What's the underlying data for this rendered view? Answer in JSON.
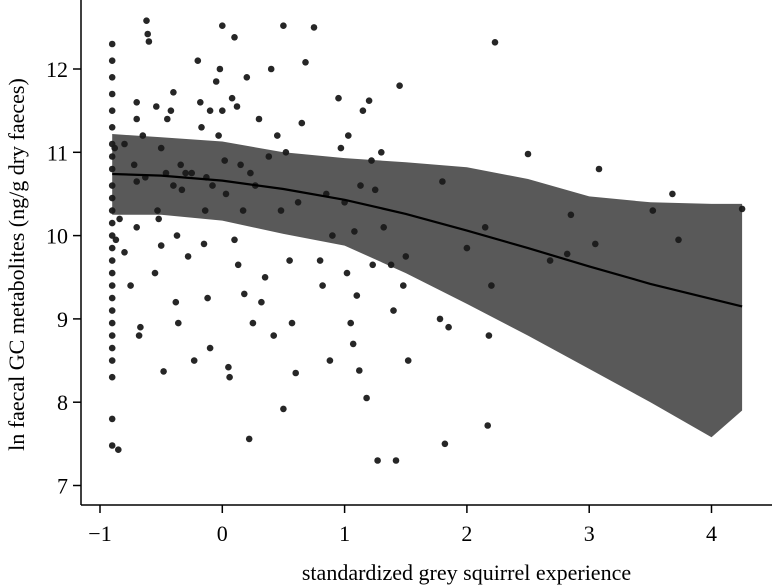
{
  "chart_data": {
    "type": "scatter",
    "title": "",
    "xlabel": "standardized grey squirrel experience",
    "ylabel": "ln faecal GC metabolites (ng/g dry faeces)",
    "xlim": [
      -1.2,
      4.5
    ],
    "ylim": [
      6.85,
      12.7
    ],
    "x_ticks": [
      -1,
      0,
      1,
      2,
      3,
      4
    ],
    "x_tick_labels": [
      "−1",
      "0",
      "1",
      "2",
      "3",
      "4"
    ],
    "y_ticks": [
      7,
      8,
      9,
      10,
      11,
      12
    ],
    "y_tick_labels": [
      "7",
      "8",
      "9",
      "10",
      "11",
      "12"
    ],
    "grid": false,
    "colors": {
      "points": "#1a1a1a",
      "ribbon": "#595959",
      "fit_line": "#000000",
      "axis": "#000000"
    },
    "fit_line": {
      "x": [
        -0.9,
        -0.5,
        0,
        0.5,
        1,
        1.5,
        2,
        2.5,
        3,
        3.5,
        4,
        4.25
      ],
      "y": [
        10.74,
        10.72,
        10.66,
        10.56,
        10.43,
        10.26,
        10.06,
        9.85,
        9.63,
        9.42,
        9.24,
        9.15
      ]
    },
    "confidence_band": {
      "x": [
        -0.9,
        -0.5,
        0,
        0.5,
        1,
        1.5,
        2,
        2.5,
        3,
        3.5,
        4,
        4.25
      ],
      "lower": [
        10.25,
        10.25,
        10.18,
        10.02,
        9.88,
        9.55,
        9.18,
        8.8,
        8.4,
        8.0,
        7.58,
        7.9
      ],
      "upper": [
        11.22,
        11.18,
        11.13,
        11.0,
        10.93,
        10.88,
        10.82,
        10.68,
        10.47,
        10.4,
        10.38,
        10.38
      ]
    },
    "points": [
      {
        "x": -0.9,
        "y": 12.3
      },
      {
        "x": -0.9,
        "y": 12.1
      },
      {
        "x": -0.9,
        "y": 11.9
      },
      {
        "x": -0.9,
        "y": 11.7
      },
      {
        "x": -0.9,
        "y": 11.5
      },
      {
        "x": -0.9,
        "y": 11.3
      },
      {
        "x": -0.9,
        "y": 11.1
      },
      {
        "x": -0.9,
        "y": 10.95
      },
      {
        "x": -0.9,
        "y": 10.8
      },
      {
        "x": -0.9,
        "y": 10.6
      },
      {
        "x": -0.9,
        "y": 10.45
      },
      {
        "x": -0.9,
        "y": 10.3
      },
      {
        "x": -0.9,
        "y": 10.15
      },
      {
        "x": -0.9,
        "y": 10.0
      },
      {
        "x": -0.9,
        "y": 9.85
      },
      {
        "x": -0.9,
        "y": 9.7
      },
      {
        "x": -0.9,
        "y": 9.55
      },
      {
        "x": -0.9,
        "y": 9.4
      },
      {
        "x": -0.9,
        "y": 9.25
      },
      {
        "x": -0.9,
        "y": 9.1
      },
      {
        "x": -0.9,
        "y": 8.95
      },
      {
        "x": -0.9,
        "y": 8.8
      },
      {
        "x": -0.9,
        "y": 8.65
      },
      {
        "x": -0.9,
        "y": 8.5
      },
      {
        "x": -0.9,
        "y": 8.3
      },
      {
        "x": -0.9,
        "y": 7.8
      },
      {
        "x": -0.9,
        "y": 7.48
      },
      {
        "x": -0.88,
        "y": 11.05
      },
      {
        "x": -0.87,
        "y": 9.95
      },
      {
        "x": -0.85,
        "y": 7.43
      },
      {
        "x": -0.84,
        "y": 10.2
      },
      {
        "x": -0.8,
        "y": 11.1
      },
      {
        "x": -0.8,
        "y": 9.8
      },
      {
        "x": -0.75,
        "y": 9.4
      },
      {
        "x": -0.72,
        "y": 10.85
      },
      {
        "x": -0.7,
        "y": 11.6
      },
      {
        "x": -0.7,
        "y": 11.4
      },
      {
        "x": -0.7,
        "y": 10.65
      },
      {
        "x": -0.7,
        "y": 10.1
      },
      {
        "x": -0.68,
        "y": 8.8
      },
      {
        "x": -0.67,
        "y": 8.9
      },
      {
        "x": -0.65,
        "y": 11.2
      },
      {
        "x": -0.63,
        "y": 10.7
      },
      {
        "x": -0.62,
        "y": 12.58
      },
      {
        "x": -0.61,
        "y": 12.42
      },
      {
        "x": -0.6,
        "y": 12.33
      },
      {
        "x": -0.55,
        "y": 9.55
      },
      {
        "x": -0.54,
        "y": 11.55
      },
      {
        "x": -0.53,
        "y": 10.3
      },
      {
        "x": -0.52,
        "y": 10.2
      },
      {
        "x": -0.5,
        "y": 11.05
      },
      {
        "x": -0.5,
        "y": 9.88
      },
      {
        "x": -0.48,
        "y": 8.37
      },
      {
        "x": -0.46,
        "y": 10.75
      },
      {
        "x": -0.45,
        "y": 11.4
      },
      {
        "x": -0.42,
        "y": 11.5
      },
      {
        "x": -0.4,
        "y": 11.72
      },
      {
        "x": -0.4,
        "y": 10.6
      },
      {
        "x": -0.38,
        "y": 9.2
      },
      {
        "x": -0.37,
        "y": 10.0
      },
      {
        "x": -0.36,
        "y": 8.95
      },
      {
        "x": -0.34,
        "y": 10.85
      },
      {
        "x": -0.33,
        "y": 10.55
      },
      {
        "x": -0.3,
        "y": 10.75
      },
      {
        "x": -0.28,
        "y": 9.75
      },
      {
        "x": -0.25,
        "y": 10.75
      },
      {
        "x": -0.23,
        "y": 8.5
      },
      {
        "x": -0.2,
        "y": 12.1
      },
      {
        "x": -0.18,
        "y": 11.6
      },
      {
        "x": -0.17,
        "y": 11.3
      },
      {
        "x": -0.15,
        "y": 9.9
      },
      {
        "x": -0.14,
        "y": 10.3
      },
      {
        "x": -0.13,
        "y": 10.7
      },
      {
        "x": -0.12,
        "y": 9.25
      },
      {
        "x": -0.1,
        "y": 11.5
      },
      {
        "x": -0.1,
        "y": 8.65
      },
      {
        "x": -0.08,
        "y": 10.6
      },
      {
        "x": -0.05,
        "y": 11.85
      },
      {
        "x": -0.03,
        "y": 11.2
      },
      {
        "x": -0.02,
        "y": 12.0
      },
      {
        "x": 0.0,
        "y": 12.52
      },
      {
        "x": 0.0,
        "y": 11.5
      },
      {
        "x": 0.02,
        "y": 10.9
      },
      {
        "x": 0.03,
        "y": 10.5
      },
      {
        "x": 0.05,
        "y": 8.42
      },
      {
        "x": 0.06,
        "y": 8.3
      },
      {
        "x": 0.08,
        "y": 11.65
      },
      {
        "x": 0.1,
        "y": 12.38
      },
      {
        "x": 0.1,
        "y": 9.95
      },
      {
        "x": 0.12,
        "y": 11.55
      },
      {
        "x": 0.13,
        "y": 9.65
      },
      {
        "x": 0.15,
        "y": 10.85
      },
      {
        "x": 0.17,
        "y": 10.3
      },
      {
        "x": 0.18,
        "y": 9.3
      },
      {
        "x": 0.2,
        "y": 11.9
      },
      {
        "x": 0.22,
        "y": 7.56
      },
      {
        "x": 0.23,
        "y": 10.75
      },
      {
        "x": 0.25,
        "y": 8.95
      },
      {
        "x": 0.27,
        "y": 10.6
      },
      {
        "x": 0.3,
        "y": 11.4
      },
      {
        "x": 0.32,
        "y": 9.2
      },
      {
        "x": 0.35,
        "y": 9.5
      },
      {
        "x": 0.38,
        "y": 10.95
      },
      {
        "x": 0.4,
        "y": 12.0
      },
      {
        "x": 0.42,
        "y": 8.8
      },
      {
        "x": 0.45,
        "y": 11.2
      },
      {
        "x": 0.48,
        "y": 10.3
      },
      {
        "x": 0.5,
        "y": 12.52
      },
      {
        "x": 0.5,
        "y": 7.92
      },
      {
        "x": 0.52,
        "y": 11.0
      },
      {
        "x": 0.55,
        "y": 9.7
      },
      {
        "x": 0.57,
        "y": 8.95
      },
      {
        "x": 0.6,
        "y": 8.35
      },
      {
        "x": 0.62,
        "y": 10.4
      },
      {
        "x": 0.65,
        "y": 11.35
      },
      {
        "x": 0.68,
        "y": 12.08
      },
      {
        "x": 0.75,
        "y": 12.5
      },
      {
        "x": 0.8,
        "y": 9.7
      },
      {
        "x": 0.82,
        "y": 9.4
      },
      {
        "x": 0.85,
        "y": 10.5
      },
      {
        "x": 0.88,
        "y": 8.5
      },
      {
        "x": 0.9,
        "y": 10.0
      },
      {
        "x": 0.95,
        "y": 11.65
      },
      {
        "x": 0.97,
        "y": 11.05
      },
      {
        "x": 1.0,
        "y": 10.4
      },
      {
        "x": 1.02,
        "y": 9.55
      },
      {
        "x": 1.03,
        "y": 11.2
      },
      {
        "x": 1.05,
        "y": 8.95
      },
      {
        "x": 1.07,
        "y": 8.7
      },
      {
        "x": 1.08,
        "y": 10.05
      },
      {
        "x": 1.1,
        "y": 9.28
      },
      {
        "x": 1.12,
        "y": 8.38
      },
      {
        "x": 1.13,
        "y": 10.6
      },
      {
        "x": 1.15,
        "y": 11.5
      },
      {
        "x": 1.18,
        "y": 8.05
      },
      {
        "x": 1.2,
        "y": 11.62
      },
      {
        "x": 1.22,
        "y": 10.9
      },
      {
        "x": 1.23,
        "y": 9.65
      },
      {
        "x": 1.25,
        "y": 10.55
      },
      {
        "x": 1.27,
        "y": 7.3
      },
      {
        "x": 1.3,
        "y": 11.0
      },
      {
        "x": 1.32,
        "y": 10.1
      },
      {
        "x": 1.38,
        "y": 9.65
      },
      {
        "x": 1.4,
        "y": 9.1
      },
      {
        "x": 1.42,
        "y": 7.3
      },
      {
        "x": 1.45,
        "y": 11.8
      },
      {
        "x": 1.48,
        "y": 9.4
      },
      {
        "x": 1.5,
        "y": 9.75
      },
      {
        "x": 1.52,
        "y": 8.5
      },
      {
        "x": 1.78,
        "y": 9.0
      },
      {
        "x": 1.8,
        "y": 10.65
      },
      {
        "x": 1.82,
        "y": 7.5
      },
      {
        "x": 1.85,
        "y": 8.9
      },
      {
        "x": 2.0,
        "y": 9.85
      },
      {
        "x": 2.15,
        "y": 10.1
      },
      {
        "x": 2.18,
        "y": 8.8
      },
      {
        "x": 2.17,
        "y": 7.72
      },
      {
        "x": 2.2,
        "y": 9.4
      },
      {
        "x": 2.23,
        "y": 12.32
      },
      {
        "x": 2.5,
        "y": 10.98
      },
      {
        "x": 2.68,
        "y": 9.7
      },
      {
        "x": 2.82,
        "y": 9.78
      },
      {
        "x": 2.85,
        "y": 10.25
      },
      {
        "x": 3.05,
        "y": 9.9
      },
      {
        "x": 3.08,
        "y": 10.8
      },
      {
        "x": 3.52,
        "y": 10.3
      },
      {
        "x": 3.68,
        "y": 10.5
      },
      {
        "x": 3.73,
        "y": 9.95
      },
      {
        "x": 4.25,
        "y": 10.32
      }
    ]
  }
}
